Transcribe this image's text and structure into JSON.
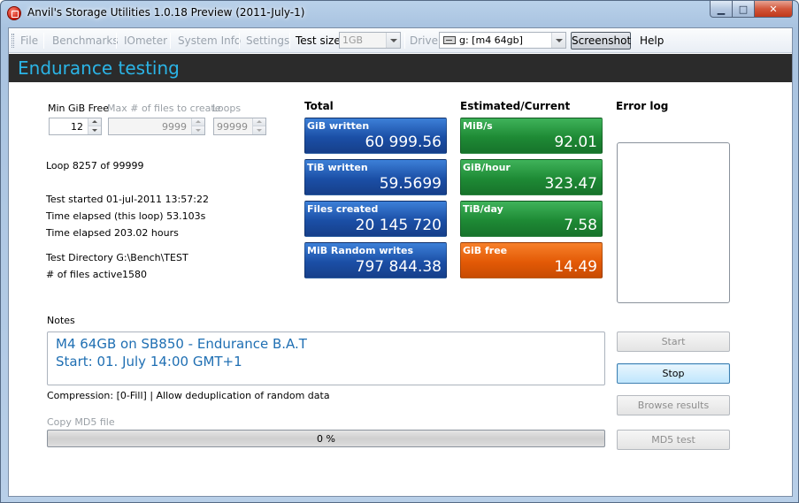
{
  "window": {
    "title": "Anvil's Storage Utilities 1.0.18 Preview (2011-July-1)",
    "caption_min": "▁",
    "caption_max": "□",
    "caption_close": "✕"
  },
  "menubar": {
    "file": "File",
    "benchmarks": "Benchmarks",
    "iometer": "IOmeter",
    "system_info": "System Info",
    "settings": "Settings",
    "test_size_label": "Test size",
    "test_size_value": "1GB",
    "drive_label": "Drive",
    "drive_value": "g: [m4 64gb]",
    "screenshot": "Screenshot",
    "help": "Help"
  },
  "header": {
    "title": "Endurance testing"
  },
  "params": {
    "min_free_label": "Min GiB Free",
    "min_free_value": "12",
    "max_files_label": "Max # of files to create",
    "max_files_value": "9999",
    "loops_label": "Loops",
    "loops_value": "99999"
  },
  "status": {
    "loop": "Loop 8257 of 99999",
    "test_started": "Test started 01-jul-2011 13:57:22",
    "elapsed_loop": "Time elapsed (this loop) 53.103s",
    "elapsed_total": "Time elapsed 203.02 hours",
    "test_directory": "Test Directory G:\\Bench\\TEST",
    "files_active_label": "# of files active",
    "files_active_value": "1580"
  },
  "totals": {
    "heading": "Total",
    "tiles": [
      {
        "label": "GiB written",
        "value": "60 999.56"
      },
      {
        "label": "TiB written",
        "value": "59.5699"
      },
      {
        "label": "Files created",
        "value": "20 145 720"
      },
      {
        "label": "MiB Random writes",
        "value": "797 844.38"
      }
    ]
  },
  "estimated": {
    "heading": "Estimated/Current",
    "tiles": [
      {
        "label": "MiB/s",
        "value": "92.01"
      },
      {
        "label": "GiB/hour",
        "value": "323.47"
      },
      {
        "label": "TiB/day",
        "value": "7.58"
      },
      {
        "label": "GiB free",
        "value": "14.49"
      }
    ]
  },
  "errorlog": {
    "heading": "Error log"
  },
  "notes": {
    "label": "Notes",
    "line1": "M4 64GB on SB850 - Endurance B.A.T",
    "line2": "Start: 01. July 14:00 GMT+1"
  },
  "compression": "Compression: [0-Fill] | Allow deduplication of random data",
  "md5": {
    "label": "Copy MD5 file",
    "progress_text": "0 %",
    "progress_fraction": 0
  },
  "buttons": {
    "start": "Start",
    "stop": "Stop",
    "browse": "Browse results",
    "md5_test": "MD5 test"
  },
  "colors": {
    "header_accent": "#2bb4e6",
    "tile_blue": "#1b4fa6",
    "tile_green": "#1e8a35",
    "tile_orange": "#e35a06",
    "notes_text": "#1f6fb3"
  }
}
